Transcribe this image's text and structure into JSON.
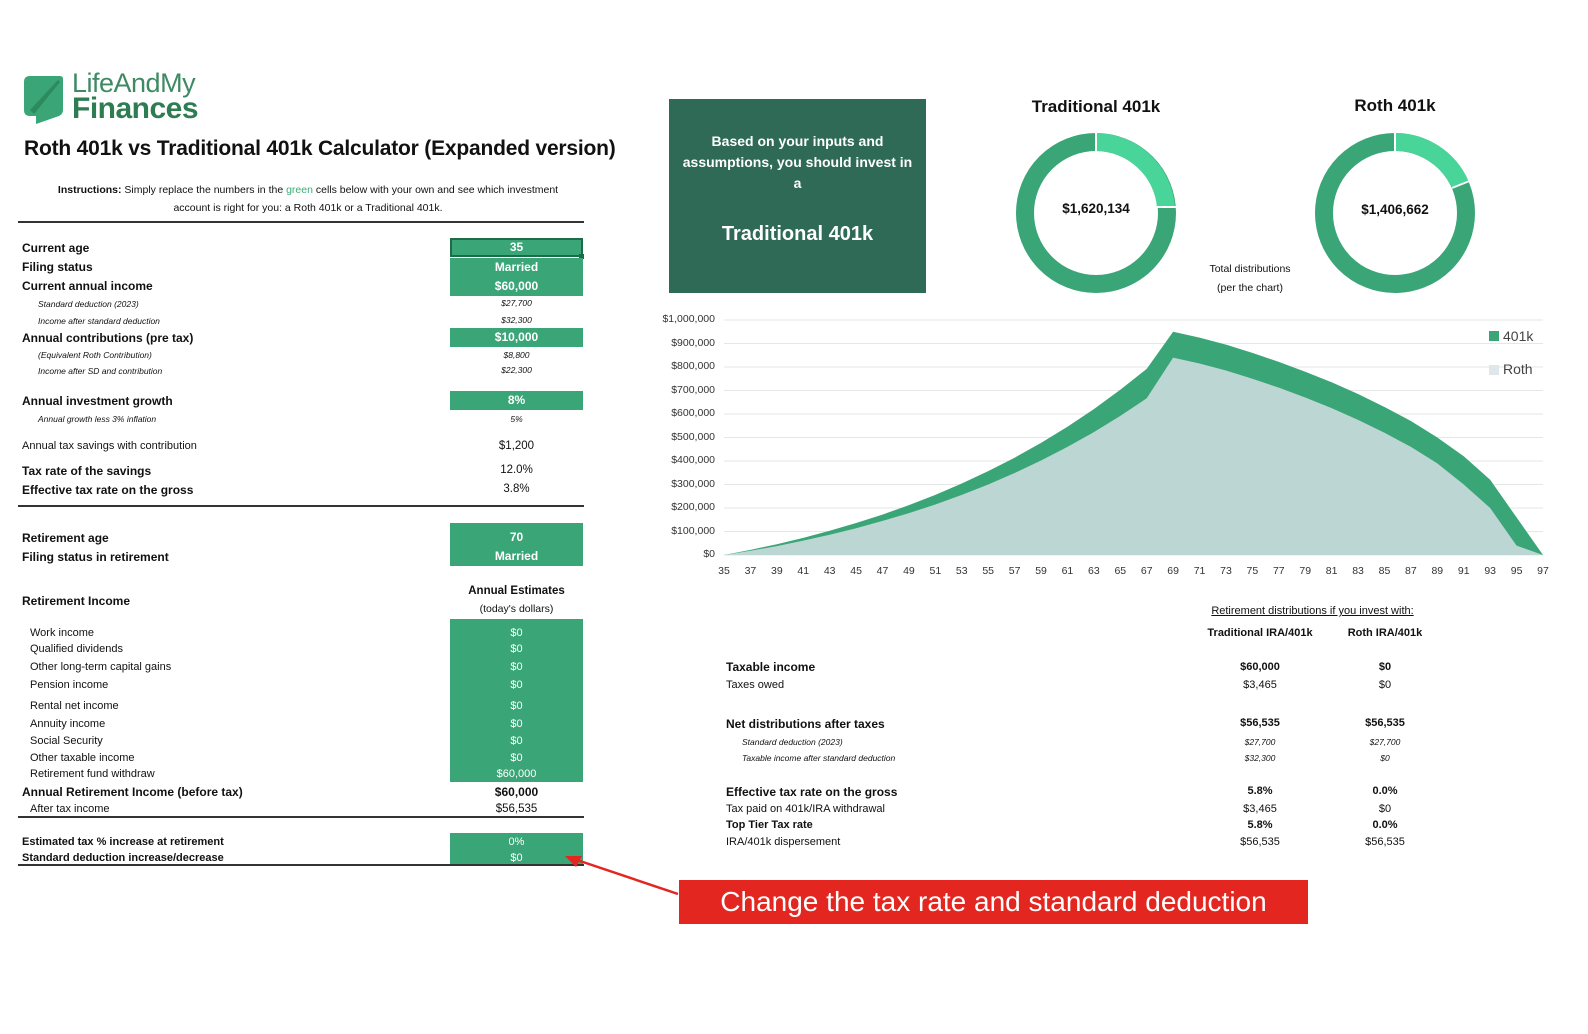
{
  "logo": {
    "line1": "LifeAndMy",
    "line2": "Finances"
  },
  "title": "Roth 401k vs Traditional 401k Calculator (Expanded version)",
  "instructions": {
    "lead": "Instructions:",
    "t1": " Simply replace the numbers in the ",
    "green_word": "green",
    "t2": " cells below with your own and see which investment",
    "line2": "account is right for you: a Roth 401k or a Traditional 401k."
  },
  "inputs": {
    "current_age": {
      "label": "Current age",
      "value": "35"
    },
    "filing_status": {
      "label": "Filing status",
      "value": "Married"
    },
    "current_income": {
      "label": "Current annual income",
      "value": "$60,000"
    },
    "std_deduction": {
      "label": "Standard deduction (2023)",
      "value": "$27,700"
    },
    "income_after_sd": {
      "label": "Income after standard deduction",
      "value": "$32,300"
    },
    "annual_contrib": {
      "label": "Annual contributions (pre tax)",
      "value": "$10,000"
    },
    "equiv_roth": {
      "label": "(Equivalent Roth Contribution)",
      "value": "$8,800"
    },
    "income_after_sd_contrib": {
      "label": "Income after SD and contribution",
      "value": "$22,300"
    },
    "growth": {
      "label": "Annual investment growth",
      "value": "8%"
    },
    "growth_less_inflation": {
      "label": "Annual growth less 3% inflation",
      "value": "5%"
    },
    "tax_savings": {
      "label": "Annual tax savings with contribution",
      "value": "$1,200"
    },
    "tax_rate_savings": {
      "label": "Tax rate of the savings",
      "value": "12.0%"
    },
    "effective_rate": {
      "label": "Effective tax rate on the gross",
      "value": "3.8%"
    },
    "retirement_age": {
      "label": "Retirement age",
      "value": "70"
    },
    "filing_status_ret": {
      "label": "Filing status in retirement",
      "value": "Married"
    }
  },
  "retirement_income": {
    "heading": "Retirement Income",
    "col_header": "Annual Estimates",
    "col_sub": "(today's dollars)",
    "items": [
      {
        "label": "Work income",
        "value": "$0"
      },
      {
        "label": "Qualified dividends",
        "value": "$0"
      },
      {
        "label": "Other long-term capital gains",
        "value": "$0"
      },
      {
        "label": "Pension income",
        "value": "$0"
      },
      {
        "label": "Rental net income",
        "value": "$0"
      },
      {
        "label": "Annuity income",
        "value": "$0"
      },
      {
        "label": "Social Security",
        "value": "$0"
      },
      {
        "label": "Other taxable income",
        "value": "$0"
      },
      {
        "label": "Retirement fund withdraw",
        "value": "$60,000"
      }
    ],
    "total": {
      "label": "Annual Retirement Income (before tax)",
      "value": "$60,000"
    },
    "after_tax": {
      "label": "After tax income",
      "value": "$56,535"
    }
  },
  "adjustments": {
    "tax_increase": {
      "label": "Estimated tax % increase at retirement",
      "value": "0%"
    },
    "sd_change": {
      "label": "Standard deduction increase/decrease",
      "value": "$0"
    }
  },
  "banner": {
    "message": "Based on your inputs and assumptions, you should invest in a",
    "recommendation": "Traditional 401k"
  },
  "donuts": {
    "traditional": {
      "title": "Traditional 401k",
      "value": "$1,620,134"
    },
    "roth": {
      "title": "Roth 401k",
      "value": "$1,406,662"
    },
    "note_l1": "Total distributions",
    "note_l2": "(per the chart)"
  },
  "colors": {
    "green": "#3aa577",
    "dark_green": "#2e6a55",
    "light_green": "#49d49a",
    "roth_fill": "#bcd6d3",
    "callout_red": "#e3261f"
  },
  "chart_data": {
    "type": "area",
    "x": [
      35,
      37,
      39,
      41,
      43,
      45,
      47,
      49,
      51,
      53,
      55,
      57,
      59,
      61,
      63,
      65,
      67,
      69,
      71,
      73,
      75,
      77,
      79,
      81,
      83,
      85,
      87,
      89,
      91,
      93,
      95,
      97
    ],
    "x_tick_labels": [
      "35",
      "37",
      "39",
      "41",
      "43",
      "45",
      "47",
      "49",
      "51",
      "53",
      "55",
      "57",
      "59",
      "61",
      "63",
      "65",
      "67",
      "69",
      "71",
      "73",
      "75",
      "77",
      "79",
      "81",
      "83",
      "85",
      "87",
      "89",
      "91",
      "93",
      "95",
      "97"
    ],
    "y_tick_labels": [
      "$1,000,000",
      "$900,000",
      "$800,000",
      "$700,000",
      "$600,000",
      "$500,000",
      "$400,000",
      "$300,000",
      "$200,000",
      "$100,000",
      "$0"
    ],
    "ylim": [
      0,
      1000000
    ],
    "legend_position": "right",
    "series": [
      {
        "name": "401k",
        "color": "#3aa577",
        "values": [
          0,
          22000,
          46000,
          73000,
          103000,
          136000,
          172000,
          212000,
          256000,
          304000,
          357000,
          414000,
          477000,
          546000,
          621000,
          703000,
          792000,
          950000,
          925000,
          895000,
          860000,
          822000,
          780000,
          735000,
          685000,
          630000,
          570000,
          500000,
          420000,
          320000,
          160000,
          0
        ]
      },
      {
        "name": "Roth",
        "color": "#bcd6d3",
        "values": [
          0,
          18000,
          38000,
          61000,
          86000,
          114000,
          145000,
          178000,
          215000,
          256000,
          300000,
          349000,
          402000,
          460000,
          523000,
          592000,
          667000,
          840000,
          815000,
          785000,
          750000,
          712000,
          670000,
          625000,
          575000,
          520000,
          460000,
          390000,
          300000,
          200000,
          40000,
          0
        ]
      }
    ]
  },
  "distributions": {
    "heading": "Retirement distributions if you invest with:",
    "col1": "Traditional IRA/401k",
    "col2": "Roth IRA/401k",
    "rows": [
      {
        "label": "Taxable income",
        "v1": "$60,000",
        "v2": "$0"
      },
      {
        "label": "Taxes owed",
        "v1": "$3,465",
        "v2": "$0"
      },
      {
        "label": "Net distributions after taxes",
        "v1": "$56,535",
        "v2": "$56,535"
      },
      {
        "label": "Standard deduction (2023)",
        "v1": "$27,700",
        "v2": "$27,700"
      },
      {
        "label": "Taxable income after standard deduction",
        "v1": "$32,300",
        "v2": "$0"
      },
      {
        "label": "Effective tax rate on the gross",
        "v1": "5.8%",
        "v2": "0.0%"
      },
      {
        "label": "Tax paid on 401k/IRA withdrawal",
        "v1": "$3,465",
        "v2": "$0"
      },
      {
        "label": "Top Tier Tax rate",
        "v1": "5.8%",
        "v2": "0.0%"
      },
      {
        "label": "IRA/401k dispersement",
        "v1": "$56,535",
        "v2": "$56,535"
      }
    ]
  },
  "callout": "Change the tax rate and standard deduction"
}
